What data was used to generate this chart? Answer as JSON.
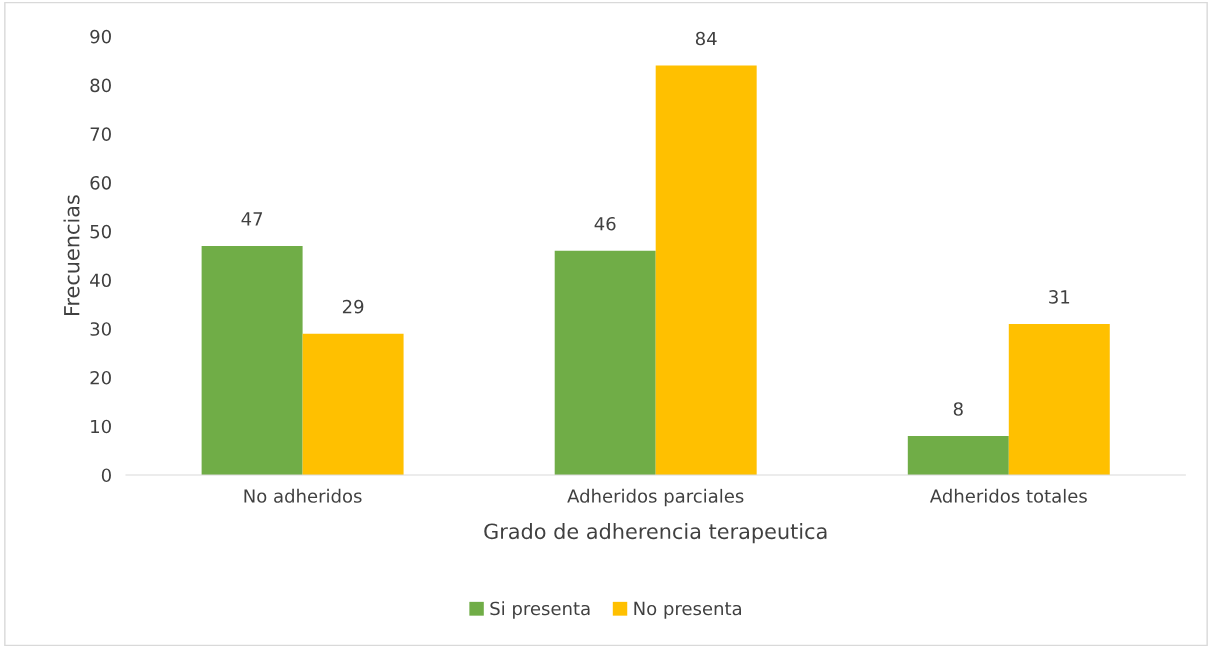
{
  "chart_data": {
    "type": "bar",
    "xlabel": "Grado de adherencia terapeutica",
    "ylabel": "Frecuencias",
    "categories": [
      "No adheridos",
      "Adheridos parciales",
      "Adheridos totales"
    ],
    "series": [
      {
        "name": "Si presenta",
        "color": "#70ad47",
        "values": [
          47,
          46,
          8
        ]
      },
      {
        "name": "No presenta",
        "color": "#ffc000",
        "values": [
          29,
          84,
          31
        ]
      }
    ],
    "ylim": [
      0,
      90
    ],
    "yticks": [
      0,
      10,
      20,
      30,
      40,
      50,
      60,
      70,
      80,
      90
    ],
    "data_labels": true,
    "grid": false,
    "legend": "bottom"
  }
}
